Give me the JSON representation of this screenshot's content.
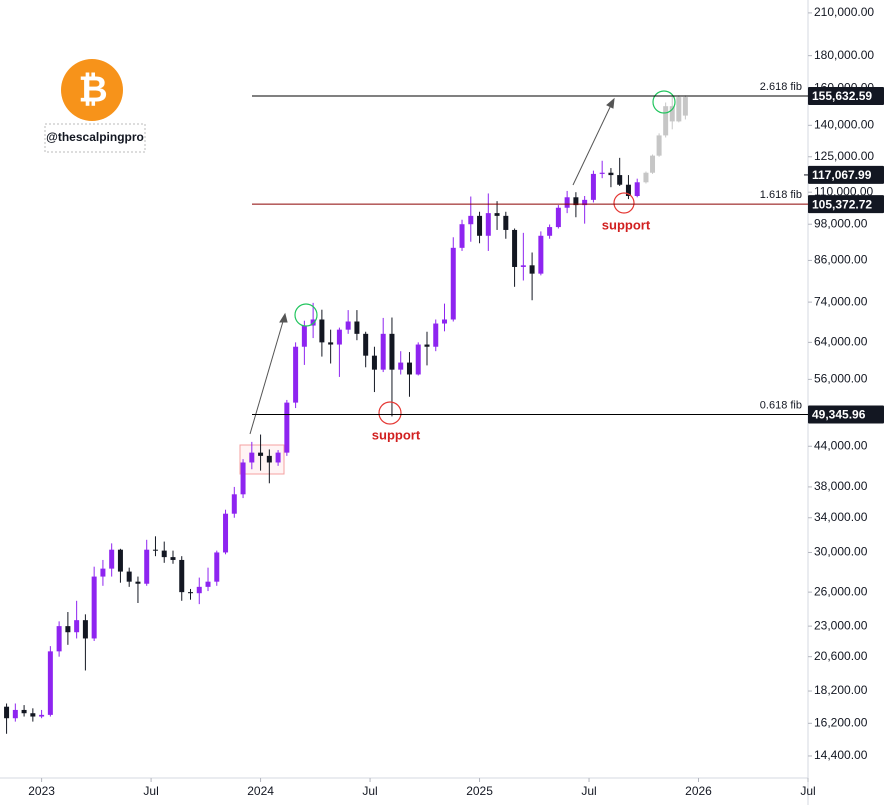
{
  "chart_data": {
    "type": "candlestick",
    "log_scale": true,
    "grid": false,
    "xlim": [
      2022.81,
      2026.5
    ],
    "ylim": [
      13300,
      220000
    ],
    "xticks": [
      {
        "value": 2023,
        "label": "2023"
      },
      {
        "value": 2023.5,
        "label": "Jul"
      },
      {
        "value": 2024,
        "label": "2024"
      },
      {
        "value": 2024.5,
        "label": "Jul"
      },
      {
        "value": 2025,
        "label": "2025"
      },
      {
        "value": 2025.5,
        "label": "Jul"
      },
      {
        "value": 2026,
        "label": "2026"
      },
      {
        "value": 2026.5,
        "label": "Jul"
      }
    ],
    "yticks": [
      {
        "value": 210000,
        "label": "210,000.00"
      },
      {
        "value": 180000,
        "label": "180,000.00"
      },
      {
        "value": 160000,
        "label": "160,000.00"
      },
      {
        "value": 140000,
        "label": "140,000.00"
      },
      {
        "value": 125000,
        "label": "125,000.00"
      },
      {
        "value": 110000,
        "label": "110,000.00"
      },
      {
        "value": 98000,
        "label": "98,000.00"
      },
      {
        "value": 86000,
        "label": "86,000.00"
      },
      {
        "value": 74000,
        "label": "74,000.00"
      },
      {
        "value": 64000,
        "label": "64,000.00"
      },
      {
        "value": 56000,
        "label": "56,000.00"
      },
      {
        "value": 44000,
        "label": "44,000.00"
      },
      {
        "value": 38000,
        "label": "38,000.00"
      },
      {
        "value": 34000,
        "label": "34,000.00"
      },
      {
        "value": 30000,
        "label": "30,000.00"
      },
      {
        "value": 26000,
        "label": "26,000.00"
      },
      {
        "value": 23000,
        "label": "23,000.00"
      },
      {
        "value": 20600,
        "label": "20,600.00"
      },
      {
        "value": 18200,
        "label": "18,200.00"
      },
      {
        "value": 16200,
        "label": "16,200.00"
      },
      {
        "value": 14400,
        "label": "14,400.00"
      }
    ],
    "colors": {
      "up": "#8e24f0",
      "down": "#131722",
      "projection": "#c6c6c6"
    },
    "candles": {
      "x": [
        2022.84,
        2022.88,
        2022.92,
        2022.96,
        2023.0,
        2023.04,
        2023.08,
        2023.12,
        2023.16,
        2023.2,
        2023.24,
        2023.28,
        2023.32,
        2023.36,
        2023.4,
        2023.44,
        2023.48,
        2023.52,
        2023.56,
        2023.6,
        2023.64,
        2023.68,
        2023.72,
        2023.76,
        2023.8,
        2023.84,
        2023.88,
        2023.92,
        2023.96,
        2024.0,
        2024.04,
        2024.08,
        2024.12,
        2024.16,
        2024.2,
        2024.24,
        2024.28,
        2024.32,
        2024.36,
        2024.4,
        2024.44,
        2024.48,
        2024.52,
        2024.56,
        2024.6,
        2024.64,
        2024.68,
        2024.72,
        2024.76,
        2024.8,
        2024.84,
        2024.88,
        2024.92,
        2024.96,
        2025.0,
        2025.04,
        2025.08,
        2025.12,
        2025.16,
        2025.2,
        2025.24,
        2025.28,
        2025.32,
        2025.36,
        2025.4,
        2025.44,
        2025.48,
        2025.52,
        2025.56,
        2025.6,
        2025.64,
        2025.68,
        2025.72
      ],
      "ohlc": [
        [
          17200,
          17400,
          15600,
          16500
        ],
        [
          16500,
          17400,
          16300,
          17000
        ],
        [
          17000,
          17300,
          16600,
          16800
        ],
        [
          16800,
          17100,
          16300,
          16600
        ],
        [
          16600,
          17000,
          16500,
          16700
        ],
        [
          16700,
          21400,
          16600,
          21000
        ],
        [
          21000,
          23400,
          20600,
          23000
        ],
        [
          23000,
          24200,
          21500,
          22500
        ],
        [
          22500,
          25200,
          22000,
          23500
        ],
        [
          23500,
          24000,
          19600,
          22000
        ],
        [
          22000,
          28500,
          21800,
          27500
        ],
        [
          27500,
          29200,
          26600,
          28300
        ],
        [
          28300,
          31000,
          27500,
          30300
        ],
        [
          30300,
          30400,
          26900,
          28000
        ],
        [
          28000,
          28400,
          26500,
          27000
        ],
        [
          27000,
          27500,
          25000,
          26800
        ],
        [
          26800,
          31400,
          26600,
          30300
        ],
        [
          30300,
          31800,
          29600,
          30200
        ],
        [
          30200,
          31200,
          28900,
          29500
        ],
        [
          29500,
          30200,
          28800,
          29200
        ],
        [
          29200,
          29600,
          25200,
          26000
        ],
        [
          26000,
          26300,
          25300,
          25900
        ],
        [
          25900,
          27400,
          24900,
          26500
        ],
        [
          26500,
          28400,
          26100,
          27000
        ],
        [
          27000,
          30200,
          26600,
          30000
        ],
        [
          30000,
          35000,
          29800,
          34500
        ],
        [
          34500,
          38000,
          34000,
          37000
        ],
        [
          37000,
          42000,
          36500,
          41500
        ],
        [
          41500,
          44700,
          40500,
          43000
        ],
        [
          43000,
          45900,
          40300,
          42500
        ],
        [
          42500,
          43500,
          38500,
          41500
        ],
        [
          41500,
          43400,
          41000,
          43000
        ],
        [
          43000,
          52000,
          42500,
          51500
        ],
        [
          51500,
          64000,
          50500,
          63000
        ],
        [
          63000,
          69200,
          59000,
          68000
        ],
        [
          68000,
          73800,
          65000,
          69500
        ],
        [
          69500,
          72000,
          60800,
          64000
        ],
        [
          64000,
          67000,
          59300,
          63500
        ],
        [
          63500,
          67500,
          56500,
          67000
        ],
        [
          67000,
          71900,
          66000,
          69000
        ],
        [
          69000,
          71900,
          64500,
          66000
        ],
        [
          66000,
          66500,
          58500,
          61000
        ],
        [
          61000,
          63000,
          53500,
          58000
        ],
        [
          58000,
          69900,
          57500,
          66000
        ],
        [
          66000,
          70000,
          49000,
          58000
        ],
        [
          58000,
          62000,
          57000,
          59500
        ],
        [
          59500,
          61800,
          52600,
          57000
        ],
        [
          57000,
          64000,
          56800,
          63500
        ],
        [
          63500,
          66500,
          58900,
          63000
        ],
        [
          63000,
          69500,
          62000,
          68500
        ],
        [
          68500,
          73600,
          66600,
          69500
        ],
        [
          69500,
          93500,
          69000,
          90000
        ],
        [
          90000,
          99600,
          89000,
          98000
        ],
        [
          98000,
          108300,
          92000,
          101000
        ],
        [
          101000,
          102500,
          91500,
          94000
        ],
        [
          94000,
          109500,
          89000,
          102000
        ],
        [
          102000,
          106500,
          96000,
          101000
        ],
        [
          101000,
          102500,
          93000,
          96000
        ],
        [
          96000,
          96500,
          78200,
          84000
        ],
        [
          84000,
          95000,
          80000,
          84500
        ],
        [
          84500,
          88500,
          74500,
          82000
        ],
        [
          82000,
          95500,
          81500,
          94000
        ],
        [
          94000,
          97900,
          93000,
          97000
        ],
        [
          97000,
          105000,
          96500,
          104000
        ],
        [
          104000,
          110500,
          102000,
          108000
        ],
        [
          108000,
          110000,
          100500,
          105000
        ],
        [
          105000,
          108500,
          98200,
          107000
        ],
        [
          107000,
          118900,
          106000,
          117500
        ],
        [
          117500,
          123200,
          115700,
          118000
        ],
        [
          118000,
          120000,
          112000,
          117000
        ],
        [
          117000,
          124500,
          112500,
          113000
        ],
        [
          113000,
          117000,
          107300,
          108500
        ],
        [
          108500,
          115500,
          108000,
          114000
        ]
      ]
    },
    "projection": {
      "x": [
        2025.76,
        2025.79,
        2025.82,
        2025.85,
        2025.88,
        2025.91,
        2025.94
      ],
      "ohlc": [
        [
          114000,
          118500,
          113500,
          118000
        ],
        [
          118000,
          126000,
          117500,
          125500
        ],
        [
          125500,
          136000,
          125000,
          135000
        ],
        [
          135000,
          152000,
          134000,
          150000
        ],
        [
          150000,
          156000,
          138000,
          142000
        ],
        [
          142000,
          156000,
          141500,
          155000
        ],
        [
          155000,
          156000,
          143000,
          145000
        ]
      ]
    },
    "levels": [
      {
        "value": 155632.59,
        "value_label": "155,632.59",
        "label": "2.618 fib",
        "color": "#000000"
      },
      {
        "value": 105372.72,
        "value_label": "105,372.72",
        "label": "1.618 fib",
        "color": "#8b0000"
      },
      {
        "value": 49345.96,
        "value_label": "49,345.96",
        "label": "0.618 fib",
        "color": "#000000"
      }
    ],
    "last_price": {
      "value": 117067.99,
      "value_label": "117,067.99"
    },
    "annotations": [
      "support",
      "support"
    ],
    "logo": "₿",
    "watermark": "@thescalpingpro"
  }
}
